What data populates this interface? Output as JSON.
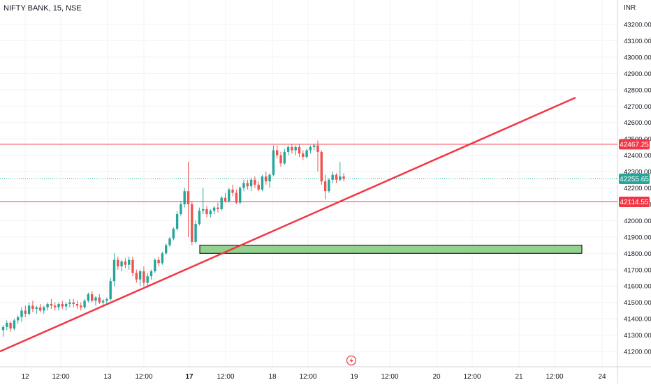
{
  "header": {
    "symbol_label": "NIFTY BANK, 15, NSE",
    "currency": "INR"
  },
  "colors": {
    "up": "#26a69a",
    "down": "#ef5350",
    "trendline": "#f23645",
    "hline": "#f23645",
    "price_line": "#26a69a",
    "zone_fill": "#93d18e",
    "zone_border": "#000000",
    "grid": "#f0f3fa",
    "text": "#131722"
  },
  "chart_data": {
    "type": "candlestick",
    "ylim": [
      41150,
      43300
    ],
    "y_ticks": [
      41200,
      41300,
      41400,
      41500,
      41600,
      41700,
      41800,
      41900,
      42000,
      42100,
      42200,
      42300,
      42400,
      42500,
      42600,
      42700,
      42800,
      42900,
      43000,
      43100,
      43200
    ],
    "y_tick_labels": [
      "41200.00",
      "41300.00",
      "41400.00",
      "41500.00",
      "41600.00",
      "41700.00",
      "41800.00",
      "41900.00",
      "42000.00",
      "42100.00",
      "42200.00",
      "42300.00",
      "42400.00",
      "42500.00",
      "42600.00",
      "42700.00",
      "42800.00",
      "42900.00",
      "43000.00",
      "43100.00",
      "43200.00"
    ],
    "x_tick_labels": [
      "12",
      "12:00",
      "13",
      "12:00",
      "17",
      "12:00",
      "18",
      "12:00",
      "19",
      "12:00",
      "20",
      "12:00",
      "21",
      "12:00",
      "24"
    ],
    "bold_x_ticks": [
      "17"
    ],
    "candles": [
      [
        41330,
        41360,
        41290,
        41350
      ],
      [
        41350,
        41390,
        41330,
        41375
      ],
      [
        41375,
        41385,
        41320,
        41340
      ],
      [
        41340,
        41400,
        41330,
        41390
      ],
      [
        41390,
        41420,
        41370,
        41410
      ],
      [
        41410,
        41470,
        41380,
        41450
      ],
      [
        41450,
        41480,
        41410,
        41430
      ],
      [
        41430,
        41500,
        41420,
        41480
      ],
      [
        41480,
        41510,
        41440,
        41460
      ],
      [
        41460,
        41480,
        41430,
        41470
      ],
      [
        41470,
        41490,
        41440,
        41450
      ],
      [
        41450,
        41480,
        41430,
        41470
      ],
      [
        41470,
        41500,
        41450,
        41490
      ],
      [
        41490,
        41520,
        41460,
        41480
      ],
      [
        41480,
        41500,
        41450,
        41470
      ],
      [
        41470,
        41500,
        41450,
        41490
      ],
      [
        41490,
        41510,
        41460,
        41475
      ],
      [
        41475,
        41500,
        41450,
        41490
      ],
      [
        41490,
        41520,
        41470,
        41500
      ],
      [
        41500,
        41520,
        41470,
        41490
      ],
      [
        41490,
        41510,
        41460,
        41480
      ],
      [
        41480,
        41500,
        41450,
        41470
      ],
      [
        41470,
        41520,
        41460,
        41510
      ],
      [
        41510,
        41560,
        41500,
        41550
      ],
      [
        41550,
        41570,
        41500,
        41510
      ],
      [
        41510,
        41540,
        41480,
        41530
      ],
      [
        41530,
        41550,
        41490,
        41500
      ],
      [
        41500,
        41520,
        41480,
        41510
      ],
      [
        41510,
        41530,
        41490,
        41520
      ],
      [
        41520,
        41650,
        41510,
        41630
      ],
      [
        41630,
        41800,
        41600,
        41760
      ],
      [
        41760,
        41780,
        41700,
        41720
      ],
      [
        41720,
        41760,
        41690,
        41750
      ],
      [
        41750,
        41770,
        41710,
        41730
      ],
      [
        41730,
        41780,
        41700,
        41760
      ],
      [
        41760,
        41780,
        41660,
        41680
      ],
      [
        41680,
        41700,
        41620,
        41640
      ],
      [
        41640,
        41700,
        41600,
        41690
      ],
      [
        41690,
        41720,
        41600,
        41620
      ],
      [
        41620,
        41680,
        41590,
        41660
      ],
      [
        41660,
        41700,
        41640,
        41690
      ],
      [
        41690,
        41770,
        41680,
        41760
      ],
      [
        41760,
        41780,
        41720,
        41740
      ],
      [
        41740,
        41810,
        41730,
        41800
      ],
      [
        41800,
        41860,
        41790,
        41850
      ],
      [
        41850,
        41900,
        41840,
        41890
      ],
      [
        41890,
        41960,
        41880,
        41950
      ],
      [
        41950,
        42060,
        41940,
        42040
      ],
      [
        42040,
        42120,
        42030,
        42100
      ],
      [
        42100,
        42200,
        42080,
        42180
      ],
      [
        42180,
        42360,
        41900,
        42100
      ],
      [
        42100,
        42120,
        41850,
        41870
      ],
      [
        41870,
        42000,
        41860,
        41980
      ],
      [
        41980,
        42080,
        41970,
        42060
      ],
      [
        42060,
        42200,
        42040,
        42070
      ],
      [
        42070,
        42090,
        42020,
        42040
      ],
      [
        42040,
        42070,
        42020,
        42060
      ],
      [
        42060,
        42090,
        42040,
        42080
      ],
      [
        42080,
        42110,
        42050,
        42070
      ],
      [
        42070,
        42150,
        42060,
        42140
      ],
      [
        42140,
        42170,
        42110,
        42120
      ],
      [
        42120,
        42200,
        42110,
        42190
      ],
      [
        42190,
        42220,
        42150,
        42170
      ],
      [
        42170,
        42190,
        42100,
        42110
      ],
      [
        42110,
        42210,
        42100,
        42200
      ],
      [
        42200,
        42250,
        42180,
        42230
      ],
      [
        42230,
        42250,
        42190,
        42210
      ],
      [
        42210,
        42260,
        42180,
        42250
      ],
      [
        42250,
        42270,
        42200,
        42220
      ],
      [
        42220,
        42240,
        42180,
        42190
      ],
      [
        42190,
        42280,
        42180,
        42270
      ],
      [
        42270,
        42300,
        42220,
        42240
      ],
      [
        42240,
        42290,
        42200,
        42280
      ],
      [
        42280,
        42460,
        42270,
        42430
      ],
      [
        42430,
        42460,
        42380,
        42400
      ],
      [
        42400,
        42420,
        42330,
        42350
      ],
      [
        42350,
        42440,
        42340,
        42420
      ],
      [
        42420,
        42460,
        42400,
        42450
      ],
      [
        42450,
        42470,
        42410,
        42430
      ],
      [
        42430,
        42460,
        42400,
        42450
      ],
      [
        42450,
        42470,
        42390,
        42410
      ],
      [
        42410,
        42430,
        42370,
        42390
      ],
      [
        42390,
        42440,
        42380,
        42430
      ],
      [
        42430,
        42460,
        42410,
        42450
      ],
      [
        42450,
        42470,
        42430,
        42460
      ],
      [
        42460,
        42490,
        42300,
        42420
      ],
      [
        42420,
        42430,
        42220,
        42240
      ],
      [
        42240,
        42280,
        42130,
        42180
      ],
      [
        42180,
        42260,
        42170,
        42250
      ],
      [
        42250,
        42300,
        42230,
        42280
      ],
      [
        42280,
        42290,
        42230,
        42250
      ],
      [
        42250,
        42360,
        42240,
        42270
      ],
      [
        42270,
        42290,
        42240,
        42256
      ]
    ],
    "annotations": {
      "hlines": [
        {
          "value": 42467.25,
          "label": "42467.25"
        },
        {
          "value": 42114.55,
          "label": "42114.55"
        }
      ],
      "last_price": {
        "value": 42255.65,
        "label": "42255.65"
      },
      "trendline": {
        "from": {
          "x": "12",
          "y": 41160
        },
        "to": {
          "x": "24",
          "y": 42760
        }
      },
      "demand_zone": {
        "y_top": 41850,
        "y_bottom": 41800,
        "x_start": "17",
        "x_end": "24"
      }
    }
  }
}
